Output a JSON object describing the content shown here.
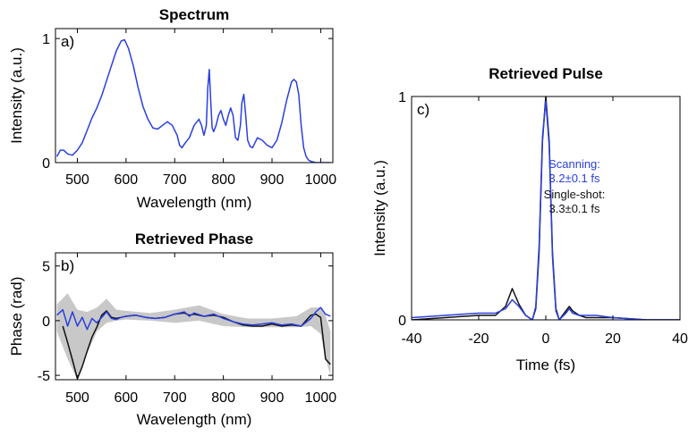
{
  "colors": {
    "scanning": "#2a3fe0",
    "singleshot": "#111111",
    "band": "#c8c8c8"
  },
  "chart_data": [
    {
      "type": "line",
      "panel_label": "a)",
      "title": "Spectrum",
      "xlabel": "Wavelength (nm)",
      "ylabel": "Intensity (a.u.)",
      "xlim": [
        455,
        1025
      ],
      "ylim": [
        0,
        1.08
      ],
      "xticks": [
        500,
        600,
        700,
        800,
        900,
        1000
      ],
      "yticks": [
        0,
        1
      ],
      "series": [
        {
          "color": "scanning",
          "x": [
            458,
            465,
            472,
            480,
            490,
            500,
            510,
            520,
            530,
            540,
            550,
            560,
            570,
            580,
            590,
            597,
            605,
            615,
            625,
            635,
            645,
            655,
            665,
            675,
            685,
            695,
            705,
            710,
            715,
            720,
            730,
            740,
            750,
            755,
            760,
            765,
            768,
            771,
            774,
            777,
            780,
            785,
            790,
            795,
            800,
            805,
            810,
            815,
            820,
            825,
            830,
            835,
            838,
            842,
            846,
            850,
            855,
            860,
            870,
            880,
            890,
            900,
            910,
            920,
            930,
            940,
            945,
            950,
            955,
            960,
            965,
            970,
            975,
            980,
            990,
            1000,
            1010,
            1020
          ],
          "y": [
            0.05,
            0.1,
            0.1,
            0.07,
            0.06,
            0.1,
            0.16,
            0.26,
            0.36,
            0.44,
            0.54,
            0.66,
            0.78,
            0.9,
            0.98,
            0.99,
            0.92,
            0.78,
            0.6,
            0.45,
            0.35,
            0.28,
            0.27,
            0.3,
            0.33,
            0.3,
            0.22,
            0.14,
            0.12,
            0.15,
            0.2,
            0.3,
            0.35,
            0.3,
            0.22,
            0.3,
            0.6,
            0.75,
            0.5,
            0.28,
            0.25,
            0.3,
            0.38,
            0.42,
            0.35,
            0.3,
            0.38,
            0.44,
            0.38,
            0.2,
            0.18,
            0.3,
            0.48,
            0.55,
            0.38,
            0.18,
            0.13,
            0.12,
            0.2,
            0.18,
            0.14,
            0.12,
            0.18,
            0.32,
            0.5,
            0.65,
            0.67,
            0.65,
            0.55,
            0.3,
            0.12,
            0.05,
            0.02,
            0.01,
            0.0,
            0.0,
            0.0,
            0.0
          ]
        }
      ]
    },
    {
      "type": "line",
      "panel_label": "b)",
      "title": "Retrieved Phase",
      "xlabel": "Wavelength (nm)",
      "ylabel": "Phase (rad)",
      "xlim": [
        455,
        1025
      ],
      "ylim": [
        -5.4,
        6.2
      ],
      "xticks": [
        500,
        600,
        700,
        800,
        900,
        1000
      ],
      "yticks": [
        -5,
        0,
        5
      ],
      "band_color": "band",
      "band": {
        "x": [
          458,
          480,
          500,
          520,
          540,
          560,
          580,
          600,
          650,
          700,
          750,
          800,
          850,
          900,
          950,
          980,
          1000,
          1010,
          1020
        ],
        "lower": [
          -1.0,
          -3.5,
          -5.4,
          -3.0,
          -1.0,
          -0.2,
          0.0,
          0.1,
          0.0,
          -0.2,
          0.0,
          -0.5,
          -0.6,
          -0.6,
          -0.6,
          -0.5,
          -1.2,
          -3.5,
          -5.0
        ],
        "upper": [
          1.5,
          2.5,
          1.0,
          0.8,
          1.2,
          2.0,
          1.0,
          0.9,
          0.7,
          1.0,
          1.4,
          0.6,
          0.2,
          0.2,
          0.4,
          1.2,
          1.2,
          0.5,
          -1.0
        ]
      },
      "series": [
        {
          "color": "singleshot",
          "x": [
            470,
            480,
            490,
            500,
            510,
            520,
            530,
            540,
            550,
            560,
            570,
            580,
            590,
            600,
            620,
            640,
            660,
            680,
            700,
            720,
            730,
            740,
            760,
            780,
            800,
            820,
            840,
            860,
            880,
            900,
            920,
            940,
            960,
            980,
            990,
            1000,
            1010,
            1020
          ],
          "y": [
            -0.5,
            -2.0,
            -3.6,
            -5.3,
            -4.2,
            -2.8,
            -1.5,
            -0.6,
            0.5,
            0.9,
            0.3,
            0.2,
            0.3,
            0.4,
            0.5,
            0.3,
            0.2,
            0.3,
            0.6,
            0.7,
            0.5,
            0.6,
            0.4,
            0.5,
            0.3,
            -0.1,
            -0.4,
            -0.5,
            -0.5,
            -0.3,
            -0.5,
            -0.4,
            -0.5,
            0.5,
            0.6,
            0.3,
            -3.5,
            -4.0
          ]
        },
        {
          "color": "scanning",
          "x": [
            458,
            470,
            480,
            490,
            500,
            510,
            520,
            530,
            540,
            550,
            560,
            570,
            580,
            590,
            600,
            620,
            640,
            660,
            680,
            700,
            720,
            730,
            740,
            760,
            780,
            800,
            820,
            840,
            860,
            880,
            900,
            920,
            940,
            960,
            980,
            990,
            1000,
            1010,
            1020
          ],
          "y": [
            0.5,
            1.0,
            -0.5,
            0.8,
            -0.5,
            0.3,
            -0.8,
            0.2,
            -0.2,
            0.3,
            0.8,
            0.2,
            0.1,
            0.3,
            0.4,
            0.5,
            0.3,
            0.2,
            0.3,
            0.6,
            0.8,
            0.4,
            0.7,
            0.4,
            0.6,
            0.2,
            -0.1,
            -0.3,
            -0.4,
            -0.3,
            -0.2,
            -0.4,
            -0.3,
            -0.5,
            0.2,
            0.8,
            1.2,
            0.6,
            0.4
          ]
        }
      ]
    },
    {
      "type": "line",
      "panel_label": "c)",
      "title": "Retrieved Pulse",
      "xlabel": "Time (fs)",
      "ylabel": "Intensity (a.u.)",
      "xlim": [
        -40,
        40
      ],
      "ylim": [
        0,
        1.0
      ],
      "xticks": [
        -40,
        -20,
        0,
        20,
        40
      ],
      "yticks": [
        0,
        1
      ],
      "series": [
        {
          "color": "singleshot",
          "x": [
            -40,
            -30,
            -20,
            -15,
            -12,
            -10,
            -8,
            -6,
            -4,
            -3,
            -2,
            -1,
            0,
            1,
            2,
            3,
            4,
            6,
            7,
            8,
            10,
            12,
            15,
            20,
            30,
            40
          ],
          "y": [
            0.0,
            0.01,
            0.02,
            0.02,
            0.06,
            0.14,
            0.07,
            0.02,
            0.0,
            0.05,
            0.3,
            0.8,
            1.0,
            0.8,
            0.3,
            0.05,
            0.0,
            0.04,
            0.06,
            0.04,
            0.02,
            0.01,
            0.01,
            0.01,
            0.0,
            0.0
          ]
        },
        {
          "color": "scanning",
          "x": [
            -40,
            -30,
            -20,
            -15,
            -12,
            -10,
            -8,
            -6,
            -4,
            -3,
            -2,
            -1,
            0,
            1,
            2,
            3,
            4,
            6,
            7,
            8,
            10,
            12,
            15,
            20,
            30,
            40
          ],
          "y": [
            0.01,
            0.02,
            0.03,
            0.03,
            0.05,
            0.09,
            0.06,
            0.02,
            0.0,
            0.06,
            0.33,
            0.82,
            0.98,
            0.78,
            0.28,
            0.04,
            0.0,
            0.03,
            0.05,
            0.03,
            0.02,
            0.02,
            0.02,
            0.01,
            0.0,
            0.0
          ]
        }
      ],
      "annotations": [
        {
          "text": "Scanning:",
          "color": "scanning"
        },
        {
          "text": "3.2±0.1 fs",
          "color": "scanning"
        },
        {
          "text": "Single-shot:",
          "color": "singleshot"
        },
        {
          "text": "3.3±0.1 fs",
          "color": "singleshot"
        }
      ]
    }
  ]
}
